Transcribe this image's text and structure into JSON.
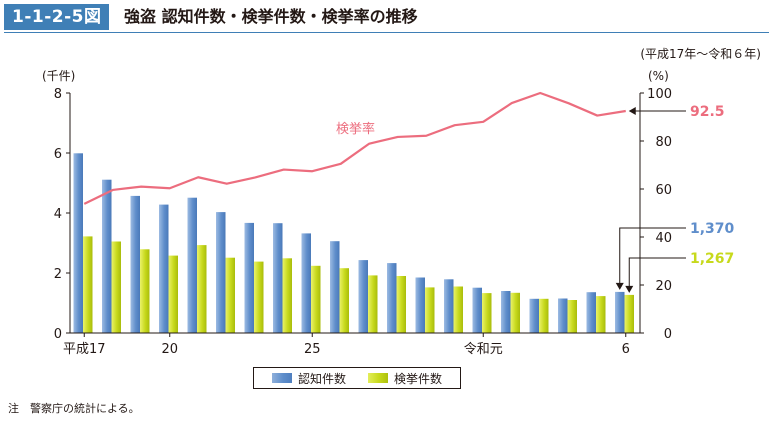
{
  "header": {
    "figure_number": "1-1-2-5図",
    "title": "強盗 認知件数・検挙件数・検挙率の推移",
    "period": "(平成17年〜令和６年)"
  },
  "note": "注　警察庁の統計による。",
  "legend": {
    "recognized": "認知件数",
    "cleared": "検挙件数"
  },
  "colors": {
    "recognized": "#5f8ecb",
    "cleared": "#c7d91c",
    "rate": "#ec6d7e",
    "title_bg": "#3f7fb6"
  },
  "chart_data": {
    "type": "bar",
    "x_labels": [
      "平成17",
      "",
      "",
      "20",
      "",
      "",
      "",
      "",
      "25",
      "",
      "",
      "",
      "",
      "",
      "令和元",
      "",
      "",
      "",
      "",
      "6"
    ],
    "tick_labels_x": [
      {
        "index": 0,
        "label": "平成17"
      },
      {
        "index": 3,
        "label": "20"
      },
      {
        "index": 8,
        "label": "25"
      },
      {
        "index": 14,
        "label": "令和元"
      },
      {
        "index": 19,
        "label": "6"
      }
    ],
    "y_left": {
      "label": "(千件)",
      "ylim": [
        0,
        8
      ],
      "ticks": [
        0,
        2,
        4,
        6,
        8
      ]
    },
    "y_right": {
      "label": "(%)",
      "ylim": [
        0,
        100
      ],
      "ticks": [
        0,
        20,
        40,
        60,
        80,
        100
      ]
    },
    "series": [
      {
        "name": "認知件数",
        "axis": "left",
        "values": [
          5.99,
          5.11,
          4.57,
          4.28,
          4.51,
          4.03,
          3.67,
          3.66,
          3.32,
          3.06,
          2.43,
          2.33,
          1.85,
          1.79,
          1.51,
          1.4,
          1.14,
          1.15,
          1.36,
          1.37
        ]
      },
      {
        "name": "検挙件数",
        "axis": "left",
        "values": [
          3.22,
          3.05,
          2.79,
          2.58,
          2.93,
          2.51,
          2.38,
          2.49,
          2.24,
          2.16,
          1.92,
          1.9,
          1.52,
          1.55,
          1.33,
          1.34,
          1.14,
          1.1,
          1.23,
          1.27
        ]
      },
      {
        "name": "検挙率",
        "axis": "right",
        "values": [
          53.8,
          59.6,
          61.0,
          60.3,
          64.9,
          62.2,
          64.8,
          68.1,
          67.4,
          70.5,
          78.9,
          81.7,
          82.2,
          86.6,
          88.0,
          95.8,
          100.0,
          95.7,
          90.6,
          92.5
        ]
      }
    ],
    "rate_label": "検挙率",
    "end_labels": {
      "rate": "92.5",
      "recognized": "1,370",
      "cleared": "1,267"
    }
  }
}
